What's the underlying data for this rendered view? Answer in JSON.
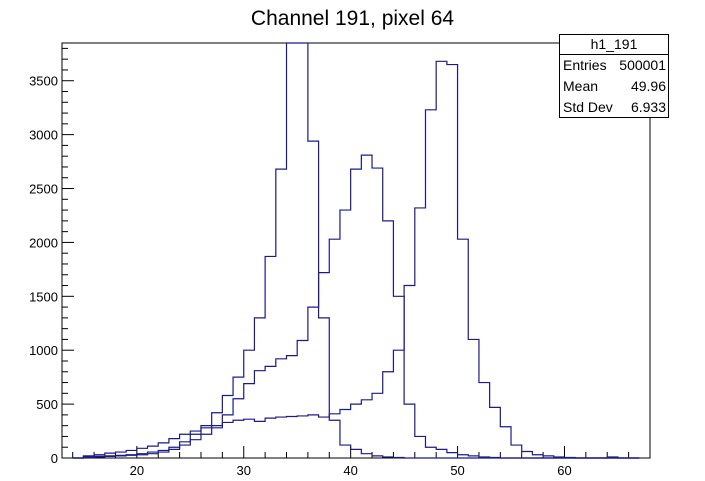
{
  "chart_data": {
    "type": "histogram",
    "title": "Channel 191, pixel 64",
    "xlabel": "",
    "ylabel": "",
    "xlim": [
      13,
      68
    ],
    "ylim": [
      0,
      3850
    ],
    "bin_width": 1,
    "x_ticks": [
      20,
      30,
      40,
      50,
      60
    ],
    "y_ticks": [
      0,
      500,
      1000,
      1500,
      2000,
      2500,
      3000,
      3500
    ],
    "line_color": "#1a1a8c",
    "series": [
      {
        "start": 14,
        "values": [
          0,
          10,
          15,
          20,
          25,
          30,
          40,
          55,
          70,
          100,
          150,
          220,
          300,
          420,
          580,
          750,
          1000,
          1300,
          1870,
          2680,
          3850,
          3850,
          2940,
          1300,
          350,
          120,
          80,
          40,
          20,
          10,
          5,
          0,
          0,
          0,
          0,
          0,
          0,
          0,
          0,
          0,
          0,
          0,
          0,
          0,
          0,
          0,
          0,
          0,
          0,
          0,
          0,
          0,
          0
        ]
      },
      {
        "start": 14,
        "values": [
          0,
          5,
          10,
          15,
          20,
          25,
          30,
          40,
          55,
          80,
          120,
          170,
          220,
          280,
          400,
          550,
          690,
          810,
          850,
          920,
          950,
          1090,
          1400,
          1720,
          2030,
          2300,
          2680,
          2810,
          2690,
          2200,
          1500,
          500,
          200,
          100,
          80,
          50,
          30,
          20,
          10,
          5,
          0,
          0,
          0,
          0,
          0,
          0,
          0,
          0,
          0,
          0,
          0,
          0,
          0
        ]
      },
      {
        "start": 14,
        "values": [
          0,
          20,
          30,
          45,
          55,
          70,
          90,
          110,
          140,
          180,
          220,
          250,
          280,
          300,
          330,
          350,
          360,
          340,
          370,
          380,
          385,
          390,
          400,
          380,
          410,
          450,
          500,
          540,
          600,
          800,
          1000,
          1600,
          2320,
          3230,
          3680,
          3650,
          2030,
          1100,
          700,
          470,
          290,
          120,
          60,
          30,
          20,
          10,
          5,
          0,
          0,
          0,
          10,
          0,
          0
        ]
      }
    ]
  },
  "stats": {
    "name": "h1_191",
    "rows": [
      {
        "label": "Entries",
        "value": "500001"
      },
      {
        "label": "Mean",
        "value": "49.96"
      },
      {
        "label": "Std Dev",
        "value": "6.933"
      }
    ]
  }
}
